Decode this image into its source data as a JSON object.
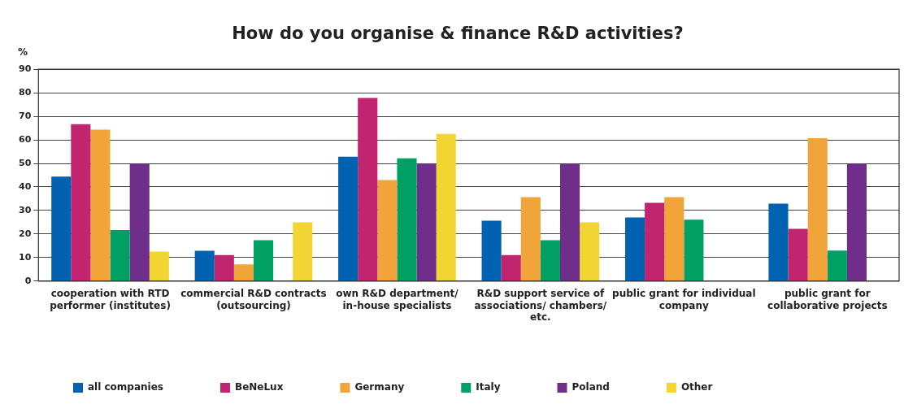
{
  "chart_data": {
    "type": "bar",
    "title": "How do you organise & finance R&D activities?",
    "ylabel": "%",
    "categories": [
      "cooperation with RTD performer (institutes)",
      "commercial R&D contracts (outsourcing)",
      "own R&D department/ in-house specialists",
      "R&D support service of associations/ chambers/ etc.",
      "public grant for individual company",
      "public grant for collaborative projects"
    ],
    "series": [
      {
        "name": "all companies",
        "color": "#0062b0",
        "values": [
          44.4,
          12.9,
          52.9,
          25.7,
          27.0,
          32.9
        ]
      },
      {
        "name": "BeNeLux",
        "color": "#c2256f",
        "values": [
          66.7,
          11.1,
          77.8,
          11.1,
          33.3,
          22.2
        ]
      },
      {
        "name": "Germany",
        "color": "#f0a43a",
        "values": [
          64.3,
          7.1,
          42.9,
          35.7,
          35.7,
          60.7
        ]
      },
      {
        "name": "Italy",
        "color": "#00a064",
        "values": [
          21.7,
          17.4,
          52.2,
          17.4,
          26.1,
          13.0
        ]
      },
      {
        "name": "Poland",
        "color": "#6e2e8a",
        "values": [
          50,
          null,
          50,
          50,
          null,
          50
        ]
      },
      {
        "name": "Other",
        "color": "#f2d532",
        "values": [
          12.5,
          25,
          62.5,
          25,
          null,
          null
        ]
      }
    ],
    "ylim": [
      0,
      90
    ],
    "yticks": [
      0,
      10,
      20,
      30,
      40,
      50,
      60,
      70,
      80,
      90
    ],
    "grid": "y",
    "legend": "bottom"
  }
}
